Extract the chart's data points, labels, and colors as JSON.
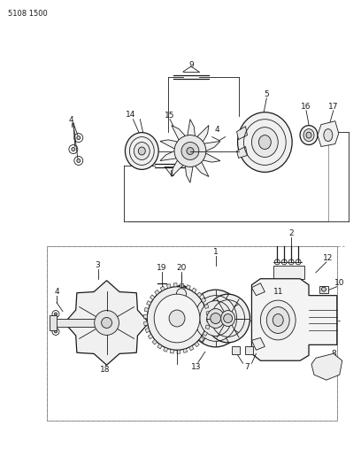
{
  "bg_color": "#ffffff",
  "line_color": "#1a1a1a",
  "gray_color": "#888888",
  "label_color": "#1a1a1a",
  "page_id": "5108 1500",
  "fig_width": 4.08,
  "fig_height": 5.33,
  "dpi": 100
}
